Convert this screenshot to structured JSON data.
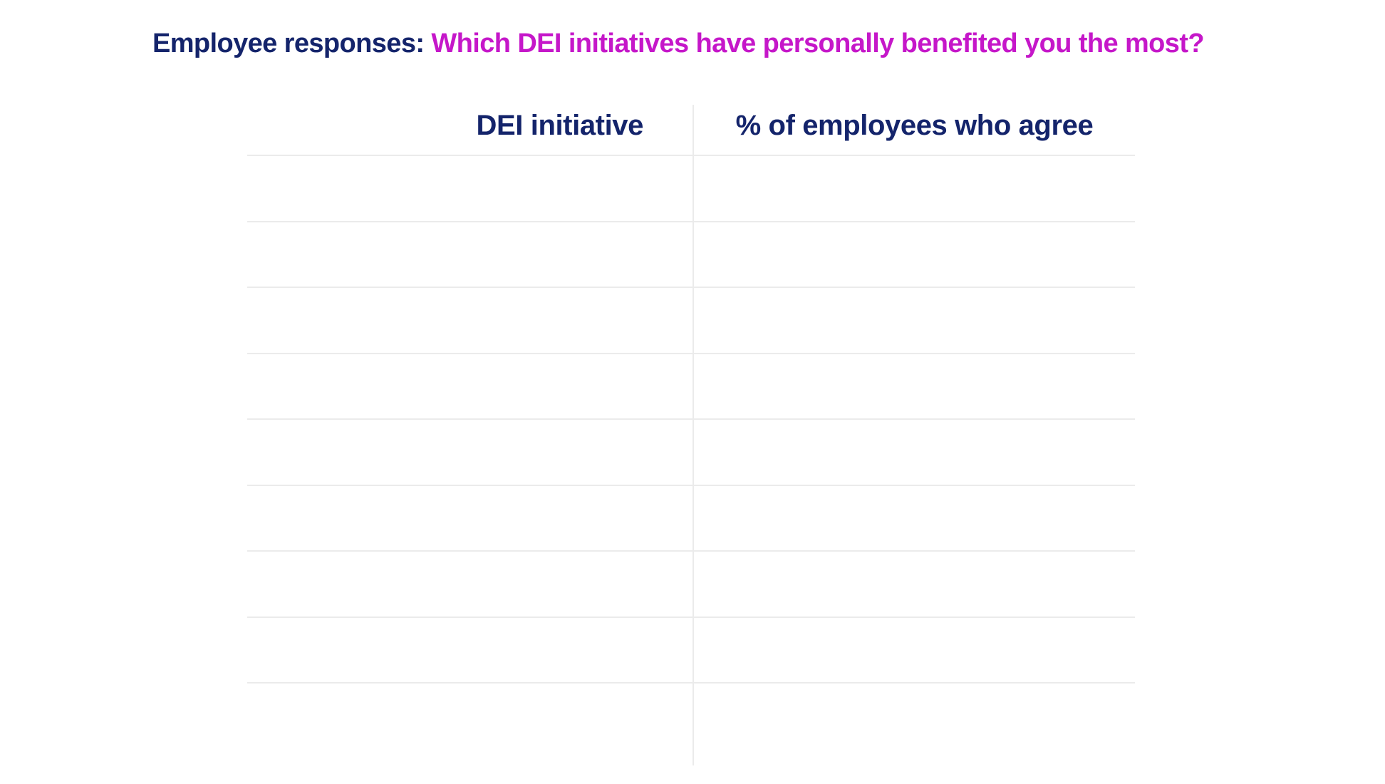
{
  "colors": {
    "navy": "#14246b",
    "magenta": "#c517c9",
    "line": "#ebebeb",
    "background": "#ffffff"
  },
  "title": {
    "prefix": "Employee responses: ",
    "highlight": "Which DEI initiatives have personally benefited you the most?"
  },
  "table": {
    "columns": [
      {
        "label": "DEI initiative"
      },
      {
        "label": "% of employees who agree"
      }
    ],
    "rows": [
      {
        "initiative": "",
        "percent": ""
      },
      {
        "initiative": "",
        "percent": ""
      },
      {
        "initiative": "",
        "percent": ""
      },
      {
        "initiative": "",
        "percent": ""
      },
      {
        "initiative": "",
        "percent": ""
      },
      {
        "initiative": "",
        "percent": ""
      },
      {
        "initiative": "",
        "percent": ""
      },
      {
        "initiative": "",
        "percent": ""
      },
      {
        "initiative": "",
        "percent": ""
      }
    ]
  },
  "chart_data": {
    "type": "table",
    "title": "Employee responses: Which DEI initiatives have personally benefited you the most?",
    "columns": [
      "DEI initiative",
      "% of employees who agree"
    ],
    "rows": [
      [
        "",
        ""
      ],
      [
        "",
        ""
      ],
      [
        "",
        ""
      ],
      [
        "",
        ""
      ],
      [
        "",
        ""
      ],
      [
        "",
        ""
      ],
      [
        "",
        ""
      ],
      [
        "",
        ""
      ],
      [
        "",
        ""
      ]
    ],
    "notes": "table is empty; 9 blank data rows under the header"
  }
}
